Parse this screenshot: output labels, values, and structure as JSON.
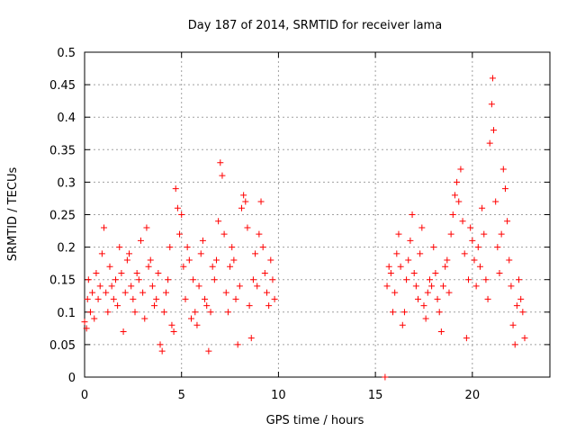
{
  "chart_data": {
    "type": "scatter",
    "title": "Day 187 of 2014, SRMTID for receiver lama",
    "xlabel": "GPS time / hours",
    "ylabel": "SRMTID / TECUs",
    "xlim": [
      0,
      24
    ],
    "ylim": [
      0,
      0.5
    ],
    "xticks": [
      0,
      5,
      10,
      15,
      20
    ],
    "xtick_labels": [
      "0",
      "5",
      "10",
      "15",
      "20"
    ],
    "yticks": [
      0,
      0.05,
      0.1,
      0.15,
      0.2,
      0.25,
      0.3,
      0.35,
      0.4,
      0.45,
      0.5
    ],
    "ytick_labels": [
      "0",
      "0.05",
      "0.1",
      "0.15",
      "0.2",
      "0.25",
      "0.3",
      "0.35",
      "0.4",
      "0.45",
      "0.5"
    ],
    "grid": true,
    "marker": "plus",
    "color": "#ff0000",
    "series": [
      {
        "name": "SRMTID",
        "points": [
          [
            0.0,
            0.085
          ],
          [
            0.1,
            0.075
          ],
          [
            0.15,
            0.12
          ],
          [
            0.2,
            0.15
          ],
          [
            0.3,
            0.1
          ],
          [
            0.4,
            0.13
          ],
          [
            0.5,
            0.09
          ],
          [
            0.6,
            0.16
          ],
          [
            0.7,
            0.12
          ],
          [
            0.8,
            0.14
          ],
          [
            0.9,
            0.19
          ],
          [
            1.0,
            0.23
          ],
          [
            1.1,
            0.13
          ],
          [
            1.2,
            0.1
          ],
          [
            1.3,
            0.17
          ],
          [
            1.4,
            0.14
          ],
          [
            1.5,
            0.12
          ],
          [
            1.6,
            0.15
          ],
          [
            1.7,
            0.11
          ],
          [
            1.8,
            0.2
          ],
          [
            1.9,
            0.16
          ],
          [
            2.0,
            0.07
          ],
          [
            2.1,
            0.13
          ],
          [
            2.2,
            0.18
          ],
          [
            2.3,
            0.19
          ],
          [
            2.4,
            0.14
          ],
          [
            2.5,
            0.12
          ],
          [
            2.6,
            0.1
          ],
          [
            2.7,
            0.16
          ],
          [
            2.8,
            0.15
          ],
          [
            2.9,
            0.21
          ],
          [
            3.0,
            0.13
          ],
          [
            3.1,
            0.09
          ],
          [
            3.2,
            0.23
          ],
          [
            3.3,
            0.17
          ],
          [
            3.4,
            0.18
          ],
          [
            3.5,
            0.14
          ],
          [
            3.6,
            0.11
          ],
          [
            3.7,
            0.12
          ],
          [
            3.8,
            0.16
          ],
          [
            3.9,
            0.05
          ],
          [
            4.0,
            0.04
          ],
          [
            4.1,
            0.1
          ],
          [
            4.2,
            0.13
          ],
          [
            4.3,
            0.15
          ],
          [
            4.4,
            0.2
          ],
          [
            4.5,
            0.08
          ],
          [
            4.6,
            0.07
          ],
          [
            4.7,
            0.29
          ],
          [
            4.8,
            0.26
          ],
          [
            4.9,
            0.22
          ],
          [
            5.0,
            0.25
          ],
          [
            5.1,
            0.17
          ],
          [
            5.2,
            0.12
          ],
          [
            5.3,
            0.2
          ],
          [
            5.4,
            0.18
          ],
          [
            5.5,
            0.09
          ],
          [
            5.6,
            0.15
          ],
          [
            5.7,
            0.1
          ],
          [
            5.8,
            0.08
          ],
          [
            5.9,
            0.14
          ],
          [
            6.0,
            0.19
          ],
          [
            6.1,
            0.21
          ],
          [
            6.2,
            0.12
          ],
          [
            6.3,
            0.11
          ],
          [
            6.4,
            0.04
          ],
          [
            6.5,
            0.1
          ],
          [
            6.6,
            0.17
          ],
          [
            6.7,
            0.15
          ],
          [
            6.8,
            0.18
          ],
          [
            6.9,
            0.24
          ],
          [
            7.0,
            0.33
          ],
          [
            7.1,
            0.31
          ],
          [
            7.2,
            0.22
          ],
          [
            7.3,
            0.13
          ],
          [
            7.4,
            0.1
          ],
          [
            7.5,
            0.17
          ],
          [
            7.6,
            0.2
          ],
          [
            7.7,
            0.18
          ],
          [
            7.8,
            0.12
          ],
          [
            7.9,
            0.05
          ],
          [
            8.0,
            0.14
          ],
          [
            8.1,
            0.26
          ],
          [
            8.2,
            0.28
          ],
          [
            8.3,
            0.27
          ],
          [
            8.4,
            0.23
          ],
          [
            8.5,
            0.11
          ],
          [
            8.6,
            0.06
          ],
          [
            8.7,
            0.15
          ],
          [
            8.8,
            0.19
          ],
          [
            8.9,
            0.14
          ],
          [
            9.0,
            0.22
          ],
          [
            9.1,
            0.27
          ],
          [
            9.2,
            0.2
          ],
          [
            9.3,
            0.16
          ],
          [
            9.4,
            0.13
          ],
          [
            9.5,
            0.11
          ],
          [
            9.6,
            0.18
          ],
          [
            9.7,
            0.15
          ],
          [
            9.8,
            0.12
          ],
          [
            15.5,
            0.0
          ],
          [
            15.6,
            0.14
          ],
          [
            15.7,
            0.17
          ],
          [
            15.8,
            0.16
          ],
          [
            15.9,
            0.1
          ],
          [
            16.0,
            0.13
          ],
          [
            16.1,
            0.19
          ],
          [
            16.2,
            0.22
          ],
          [
            16.3,
            0.17
          ],
          [
            16.4,
            0.08
          ],
          [
            16.5,
            0.1
          ],
          [
            16.6,
            0.15
          ],
          [
            16.7,
            0.18
          ],
          [
            16.8,
            0.21
          ],
          [
            16.9,
            0.25
          ],
          [
            17.0,
            0.16
          ],
          [
            17.1,
            0.14
          ],
          [
            17.2,
            0.12
          ],
          [
            17.3,
            0.19
          ],
          [
            17.4,
            0.23
          ],
          [
            17.5,
            0.11
          ],
          [
            17.6,
            0.09
          ],
          [
            17.7,
            0.13
          ],
          [
            17.8,
            0.15
          ],
          [
            17.9,
            0.14
          ],
          [
            18.0,
            0.2
          ],
          [
            18.1,
            0.16
          ],
          [
            18.2,
            0.12
          ],
          [
            18.3,
            0.1
          ],
          [
            18.4,
            0.07
          ],
          [
            18.5,
            0.14
          ],
          [
            18.6,
            0.17
          ],
          [
            18.7,
            0.18
          ],
          [
            18.8,
            0.13
          ],
          [
            18.9,
            0.22
          ],
          [
            19.0,
            0.25
          ],
          [
            19.1,
            0.28
          ],
          [
            19.2,
            0.3
          ],
          [
            19.3,
            0.27
          ],
          [
            19.4,
            0.32
          ],
          [
            19.5,
            0.24
          ],
          [
            19.6,
            0.19
          ],
          [
            19.7,
            0.06
          ],
          [
            19.8,
            0.15
          ],
          [
            19.9,
            0.23
          ],
          [
            20.0,
            0.21
          ],
          [
            20.1,
            0.18
          ],
          [
            20.2,
            0.14
          ],
          [
            20.3,
            0.2
          ],
          [
            20.4,
            0.17
          ],
          [
            20.5,
            0.26
          ],
          [
            20.6,
            0.22
          ],
          [
            20.7,
            0.15
          ],
          [
            20.8,
            0.12
          ],
          [
            20.9,
            0.36
          ],
          [
            21.0,
            0.42
          ],
          [
            21.05,
            0.46
          ],
          [
            21.1,
            0.38
          ],
          [
            21.2,
            0.27
          ],
          [
            21.3,
            0.2
          ],
          [
            21.4,
            0.16
          ],
          [
            21.5,
            0.22
          ],
          [
            21.6,
            0.32
          ],
          [
            21.7,
            0.29
          ],
          [
            21.8,
            0.24
          ],
          [
            21.9,
            0.18
          ],
          [
            22.0,
            0.14
          ],
          [
            22.1,
            0.08
          ],
          [
            22.2,
            0.05
          ],
          [
            22.3,
            0.11
          ],
          [
            22.4,
            0.15
          ],
          [
            22.5,
            0.12
          ],
          [
            22.6,
            0.1
          ],
          [
            22.7,
            0.06
          ]
        ]
      }
    ]
  }
}
